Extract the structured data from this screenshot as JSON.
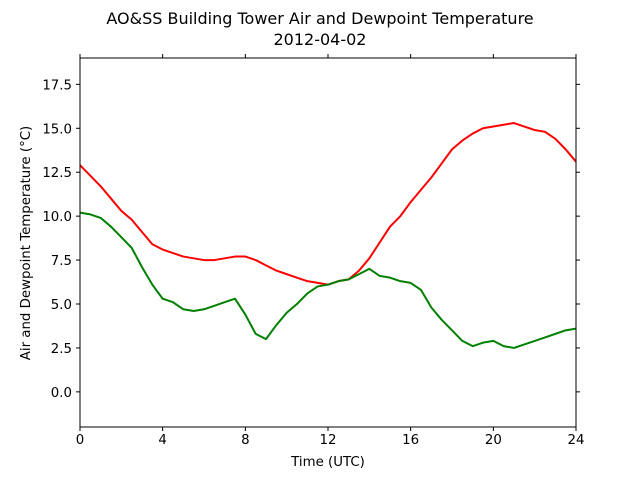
{
  "chart_data": {
    "type": "line",
    "title": "AO&SS Building Tower Air and Dewpoint Temperature",
    "subtitle": "2012-04-02",
    "xlabel": "Time (UTC)",
    "ylabel": "Air and Dewpoint Temperature (°C)",
    "xlim": [
      0,
      24
    ],
    "ylim": [
      -2.0,
      19.0
    ],
    "xticks": [
      0,
      4,
      8,
      12,
      16,
      20,
      24
    ],
    "xtick_labels": [
      "0",
      "4",
      "8",
      "12",
      "16",
      "20",
      "24"
    ],
    "yticks": [
      0.0,
      2.5,
      5.0,
      7.5,
      10.0,
      12.5,
      15.0,
      17.5
    ],
    "ytick_labels": [
      "0.0",
      "2.5",
      "5.0",
      "7.5",
      "10.0",
      "12.5",
      "15.0",
      "17.5"
    ],
    "grid": false,
    "series": [
      {
        "color": "#ff0000",
        "x": [
          0,
          0.5,
          1,
          1.5,
          2,
          2.5,
          3,
          3.5,
          4,
          4.5,
          5,
          5.5,
          6,
          6.5,
          7,
          7.5,
          8,
          8.5,
          9,
          9.5,
          10,
          10.5,
          11,
          11.5,
          12,
          12.5,
          13,
          13.5,
          14,
          14.5,
          15,
          15.5,
          16,
          16.5,
          17,
          17.5,
          18,
          18.5,
          19,
          19.5,
          20,
          20.5,
          21,
          21.5,
          22,
          22.5,
          23,
          23.5,
          24
        ],
        "values": [
          12.9,
          12.3,
          11.7,
          11.0,
          10.3,
          9.8,
          9.1,
          8.4,
          8.1,
          7.9,
          7.7,
          7.6,
          7.5,
          7.5,
          7.6,
          7.7,
          7.7,
          7.5,
          7.2,
          6.9,
          6.7,
          6.5,
          6.3,
          6.2,
          6.1,
          6.3,
          6.4,
          6.9,
          7.6,
          8.5,
          9.4,
          10.0,
          10.8,
          11.5,
          12.2,
          13.0,
          13.8,
          14.3,
          14.7,
          15.0,
          15.1,
          15.2,
          15.3,
          15.1,
          14.9,
          14.8,
          14.4,
          13.8,
          13.1
        ]
      },
      {
        "color": "#008000",
        "x": [
          0,
          0.5,
          1,
          1.5,
          2,
          2.5,
          3,
          3.5,
          4,
          4.5,
          5,
          5.5,
          6,
          6.5,
          7,
          7.5,
          8,
          8.5,
          9,
          9.5,
          10,
          10.5,
          11,
          11.5,
          12,
          12.5,
          13,
          13.5,
          14,
          14.5,
          15,
          15.5,
          16,
          16.5,
          17,
          17.5,
          18,
          18.5,
          19,
          19.5,
          20,
          20.5,
          21,
          21.5,
          22,
          22.5,
          23,
          23.5,
          24
        ],
        "values": [
          10.2,
          10.1,
          9.9,
          9.4,
          8.8,
          8.2,
          7.1,
          6.1,
          5.3,
          5.1,
          4.7,
          4.6,
          4.7,
          4.9,
          5.1,
          5.3,
          4.4,
          3.3,
          3.0,
          3.8,
          4.5,
          5.0,
          5.6,
          6.0,
          6.1,
          6.3,
          6.4,
          6.7,
          7.0,
          6.6,
          6.5,
          6.3,
          6.2,
          5.8,
          4.8,
          4.1,
          3.5,
          2.9,
          2.6,
          2.8,
          2.9,
          2.6,
          2.5,
          2.7,
          2.9,
          3.1,
          3.3,
          3.5,
          3.6
        ]
      }
    ]
  }
}
